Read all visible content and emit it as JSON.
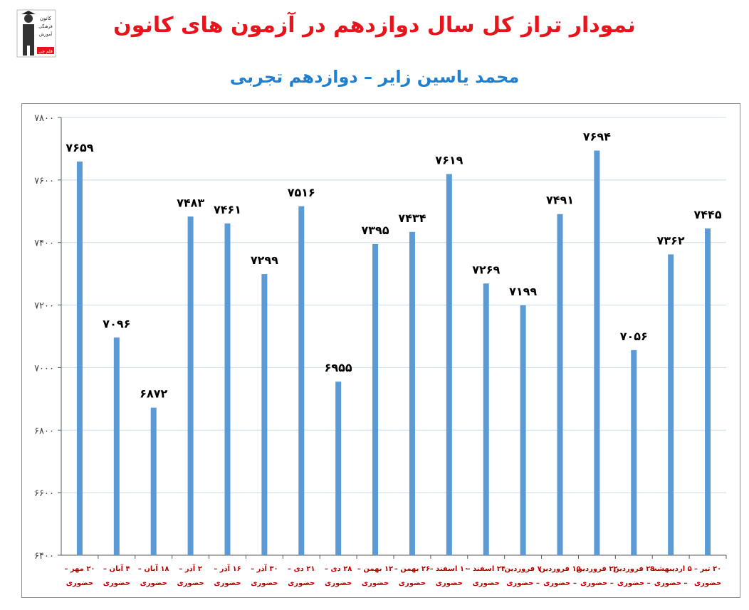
{
  "header": {
    "title": "نمودار تراز کل سال دوازدهم در آزمون های کانون",
    "subtitle": "محمد یاسین زایر – دوازدهم تجربی",
    "logo_icon": "kanoon-logo-icon",
    "logo_text_1": "کانون",
    "logo_text_2": "فرهنگی",
    "logo_text_3": "آموزش",
    "logo_text_4": "قلم چی"
  },
  "colors": {
    "bar": "#5b9bd5",
    "title": "#e8141b",
    "subtitle": "#1f7fd0",
    "category_label": "#c00000",
    "grid": "#c8dcee"
  },
  "chart_data": {
    "type": "bar",
    "title": "",
    "xlabel": "",
    "ylabel": "",
    "ylim": [
      6400,
      7800
    ],
    "yticks": [
      "۷۸۰۰",
      "۷۶۰۰",
      "۷۴۰۰",
      "۷۲۰۰",
      "۷۰۰۰",
      "۶۸۰۰",
      "۶۶۰۰",
      "۶۴۰۰"
    ],
    "ytick_values": [
      7800,
      7600,
      7400,
      7200,
      7000,
      6800,
      6600,
      6400
    ],
    "grid": true,
    "legend": "none",
    "categories": [
      {
        "line1": "۲۰ مهر –",
        "line2": "حضوری"
      },
      {
        "line1": "۴ آبان –",
        "line2": "حضوری"
      },
      {
        "line1": "۱۸ آبان –",
        "line2": "حضوری"
      },
      {
        "line1": "۲ آذر –",
        "line2": "حضوری"
      },
      {
        "line1": "۱۶ آذر –",
        "line2": "حضوری"
      },
      {
        "line1": "۳۰ آذر –",
        "line2": "حضوری"
      },
      {
        "line1": "۲۱ دی –",
        "line2": "حضوری"
      },
      {
        "line1": "۲۸ دی –",
        "line2": "حضوری"
      },
      {
        "line1": "۱۲ بهمن –",
        "line2": "حضوری"
      },
      {
        "line1": "۲۶ بهمن –",
        "line2": "حضوری"
      },
      {
        "line1": "۱۰ اسفند –",
        "line2": "حضوری"
      },
      {
        "line1": "۲۴ اسفند –",
        "line2": "حضوری"
      },
      {
        "line1": "۷ فروردین",
        "line2": "– حضوری"
      },
      {
        "line1": "۱۵ فروردین",
        "line2": "– حضوری"
      },
      {
        "line1": "۲۲ فروردین",
        "line2": "– حضوری"
      },
      {
        "line1": "۲۹ فروردین",
        "line2": "– حضوری"
      },
      {
        "line1": "۵ اردیبهشت",
        "line2": "– حضوری"
      },
      {
        "line1": "۲۰ تیر –",
        "line2": "حضوری"
      }
    ],
    "values": [
      7659,
      7096,
      6872,
      7483,
      7461,
      7299,
      7516,
      6955,
      7395,
      7434,
      7619,
      7269,
      7199,
      7491,
      7694,
      7056,
      7362,
      7445
    ],
    "data_labels": [
      "۷۶۵۹",
      "۷۰۹۶",
      "۶۸۷۲",
      "۷۴۸۳",
      "۷۴۶۱",
      "۷۲۹۹",
      "۷۵۱۶",
      "۶۹۵۵",
      "۷۳۹۵",
      "۷۴۳۴",
      "۷۶۱۹",
      "۷۲۶۹",
      "۷۱۹۹",
      "۷۴۹۱",
      "۷۶۹۴",
      "۷۰۵۶",
      "۷۳۶۲",
      "۷۴۴۵"
    ]
  }
}
